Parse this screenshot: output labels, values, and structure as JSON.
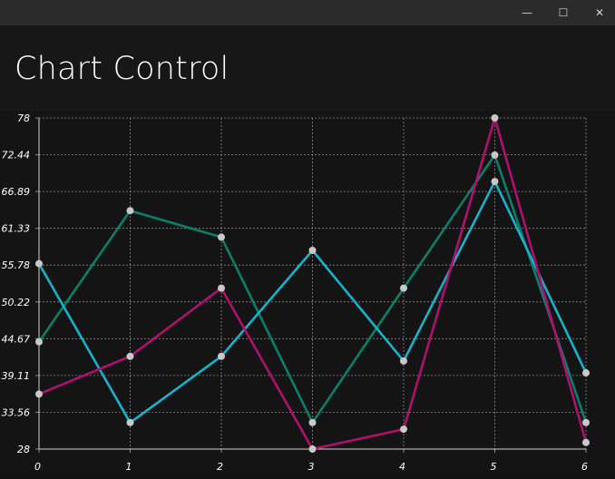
{
  "window": {
    "minimize_glyph": "—",
    "maximize_glyph": "☐",
    "close_glyph": "✕"
  },
  "header": {
    "title": "Chart Control"
  },
  "colors": {
    "background": "#141414",
    "grid": "#8a8a8a",
    "marker": "#c8c8c8",
    "series_colors": [
      "#0a7f6a",
      "#17b3cc",
      "#b0106f"
    ]
  },
  "chart_data": {
    "type": "line",
    "x": [
      0,
      1,
      2,
      3,
      4,
      5,
      6
    ],
    "y_ticks": [
      "28",
      "33.56",
      "39.11",
      "44.67",
      "50.22",
      "55.78",
      "61.33",
      "66.89",
      "72.44",
      "78"
    ],
    "x_ticks": [
      "0",
      "1",
      "2",
      "3",
      "4",
      "5",
      "6"
    ],
    "ylim": [
      28,
      78
    ],
    "xlim": [
      0,
      6
    ],
    "grid": true,
    "series": [
      {
        "values": [
          44.2,
          64.0,
          60.0,
          32.0,
          52.3,
          72.4,
          32.0
        ]
      },
      {
        "values": [
          56.0,
          32.0,
          42.0,
          58.0,
          41.3,
          68.4,
          39.5
        ]
      },
      {
        "values": [
          36.3,
          42.0,
          52.3,
          28.0,
          31.0,
          78.0,
          29.0
        ]
      }
    ]
  }
}
